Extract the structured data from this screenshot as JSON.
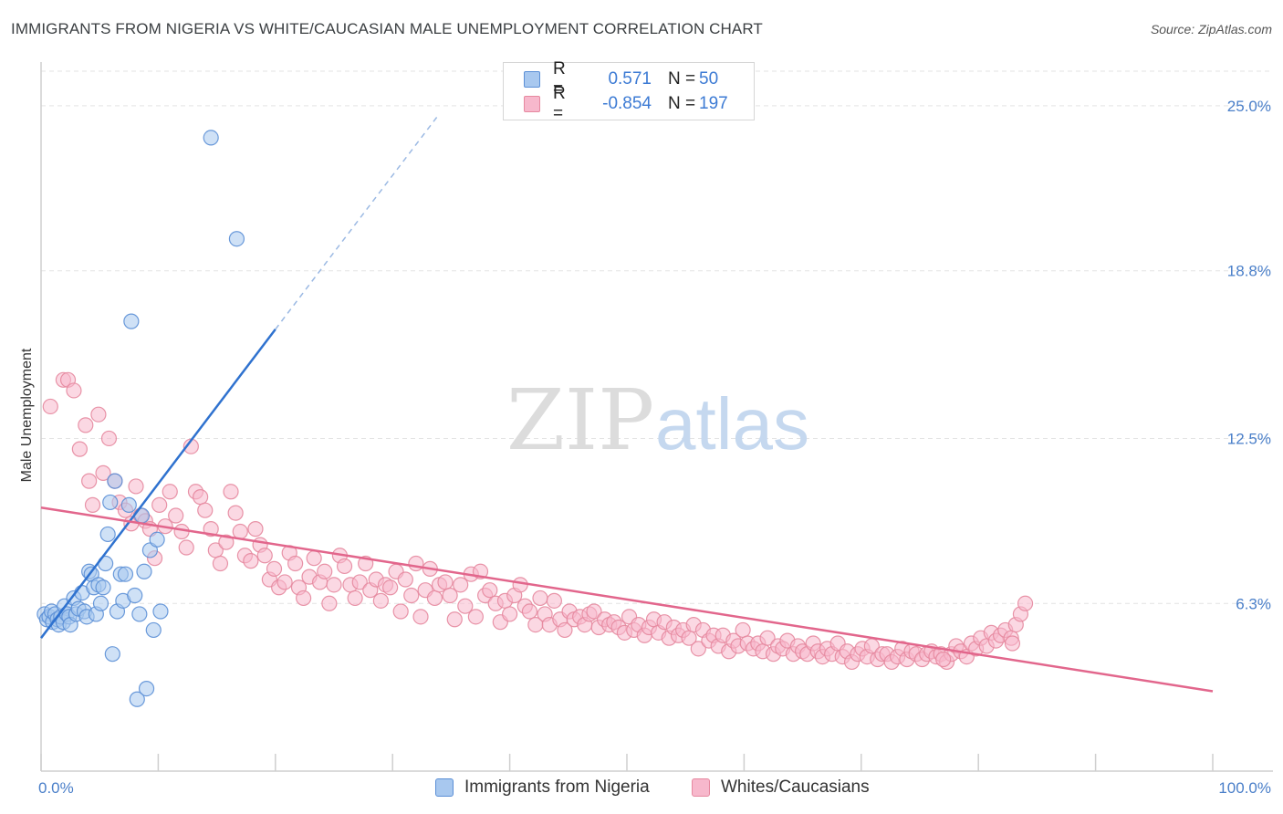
{
  "header": {
    "title": "IMMIGRANTS FROM NIGERIA VS WHITE/CAUCASIAN MALE UNEMPLOYMENT CORRELATION CHART",
    "source": "Source: ZipAtlas.com"
  },
  "watermark": {
    "zip": "ZIP",
    "atlas": "atlas"
  },
  "legend": {
    "rows": [
      {
        "r_label": "R =",
        "r_value": "0.571",
        "n_label": "N =",
        "n_value": "50",
        "color": "#a8c8ef",
        "border": "#5b8fd6"
      },
      {
        "r_label": "R =",
        "r_value": "-0.854",
        "n_label": "N =",
        "n_value": "197",
        "color": "#f7b8cc",
        "border": "#e6889f"
      }
    ]
  },
  "bottom_legend": [
    {
      "label": "Immigrants from Nigeria",
      "color": "#a8c8ef",
      "border": "#5b8fd6"
    },
    {
      "label": "Whites/Caucasians",
      "color": "#f7b8cc",
      "border": "#e6889f"
    }
  ],
  "chart_data": {
    "type": "scatter",
    "title": "IMMIGRANTS FROM NIGERIA VS WHITE/CAUCASIAN MALE UNEMPLOYMENT CORRELATION CHART",
    "xlabel": "",
    "ylabel": "Male Unemployment",
    "xlim": [
      0,
      100
    ],
    "ylim": [
      0,
      26.3
    ],
    "x_tick_labels": [
      "0.0%",
      "100.0%"
    ],
    "y_ticks": [
      6.3,
      12.5,
      18.8,
      25.0
    ],
    "y_tick_labels": [
      "6.3%",
      "12.5%",
      "18.8%",
      "25.0%"
    ],
    "colors": {
      "blue_fill": "#a8c8ef",
      "blue_stroke": "#5b8fd6",
      "blue_line": "#2f72cf",
      "pink_fill": "#f7b8cc",
      "pink_stroke": "#e6889f",
      "pink_line": "#e2668c"
    },
    "series": [
      {
        "name": "Immigrants from Nigeria",
        "r": 0.571,
        "n": 50,
        "trend": {
          "x0": 0,
          "y0": 5.0,
          "x1": 20,
          "y1": 16.6,
          "dash_to_x": 34,
          "dash_to_y": 24.7
        },
        "points": [
          [
            0.3,
            5.9
          ],
          [
            0.5,
            5.7
          ],
          [
            0.7,
            5.8
          ],
          [
            0.9,
            6.0
          ],
          [
            1.0,
            5.6
          ],
          [
            1.2,
            5.9
          ],
          [
            1.4,
            5.7
          ],
          [
            1.5,
            5.5
          ],
          [
            1.7,
            5.8
          ],
          [
            1.9,
            5.6
          ],
          [
            2.0,
            6.2
          ],
          [
            2.2,
            5.9
          ],
          [
            2.4,
            5.8
          ],
          [
            2.5,
            5.5
          ],
          [
            2.8,
            6.5
          ],
          [
            3.0,
            5.9
          ],
          [
            3.2,
            6.1
          ],
          [
            3.5,
            6.7
          ],
          [
            3.7,
            6.0
          ],
          [
            3.9,
            5.8
          ],
          [
            4.1,
            7.5
          ],
          [
            4.3,
            7.4
          ],
          [
            4.5,
            6.9
          ],
          [
            4.7,
            5.9
          ],
          [
            4.9,
            7.0
          ],
          [
            5.1,
            6.3
          ],
          [
            5.3,
            6.9
          ],
          [
            5.5,
            7.8
          ],
          [
            5.7,
            8.9
          ],
          [
            5.9,
            10.1
          ],
          [
            6.1,
            4.4
          ],
          [
            6.3,
            10.9
          ],
          [
            6.5,
            6.0
          ],
          [
            6.8,
            7.4
          ],
          [
            7.0,
            6.4
          ],
          [
            7.2,
            7.4
          ],
          [
            7.5,
            10.0
          ],
          [
            7.7,
            16.9
          ],
          [
            8.0,
            6.6
          ],
          [
            8.2,
            2.7
          ],
          [
            8.4,
            5.9
          ],
          [
            8.6,
            9.6
          ],
          [
            8.8,
            7.5
          ],
          [
            9.0,
            3.1
          ],
          [
            9.3,
            8.3
          ],
          [
            9.6,
            5.3
          ],
          [
            9.9,
            8.7
          ],
          [
            10.2,
            6.0
          ],
          [
            14.5,
            23.8
          ],
          [
            16.7,
            20.0
          ]
        ]
      },
      {
        "name": "Whites/Caucasians",
        "r": -0.854,
        "n": 197,
        "trend": {
          "x0": 0,
          "y0": 9.9,
          "x1": 100,
          "y1": 3.0
        },
        "points": [
          [
            0.8,
            13.7
          ],
          [
            1.9,
            14.7
          ],
          [
            2.3,
            14.7
          ],
          [
            2.8,
            14.3
          ],
          [
            3.3,
            12.1
          ],
          [
            3.8,
            13.0
          ],
          [
            4.1,
            10.9
          ],
          [
            4.4,
            10.0
          ],
          [
            4.9,
            13.4
          ],
          [
            5.3,
            11.2
          ],
          [
            5.8,
            12.5
          ],
          [
            6.3,
            10.9
          ],
          [
            6.7,
            10.1
          ],
          [
            7.2,
            9.8
          ],
          [
            7.7,
            9.3
          ],
          [
            8.1,
            10.7
          ],
          [
            8.5,
            9.6
          ],
          [
            8.9,
            9.4
          ],
          [
            9.3,
            9.1
          ],
          [
            9.7,
            8.0
          ],
          [
            10.1,
            10.0
          ],
          [
            10.6,
            9.2
          ],
          [
            11.0,
            10.5
          ],
          [
            11.5,
            9.6
          ],
          [
            12.0,
            9.0
          ],
          [
            12.4,
            8.4
          ],
          [
            12.8,
            12.2
          ],
          [
            13.2,
            10.5
          ],
          [
            13.6,
            10.3
          ],
          [
            14.0,
            9.8
          ],
          [
            14.5,
            9.1
          ],
          [
            14.9,
            8.3
          ],
          [
            15.3,
            7.8
          ],
          [
            15.8,
            8.6
          ],
          [
            16.2,
            10.5
          ],
          [
            16.6,
            9.7
          ],
          [
            17.0,
            9.0
          ],
          [
            17.4,
            8.1
          ],
          [
            17.9,
            7.9
          ],
          [
            18.3,
            9.1
          ],
          [
            18.7,
            8.5
          ],
          [
            19.1,
            8.1
          ],
          [
            19.5,
            7.2
          ],
          [
            19.9,
            7.6
          ],
          [
            20.3,
            6.9
          ],
          [
            20.8,
            7.1
          ],
          [
            21.2,
            8.2
          ],
          [
            21.7,
            7.8
          ],
          [
            22.0,
            6.9
          ],
          [
            22.4,
            6.5
          ],
          [
            22.9,
            7.3
          ],
          [
            23.3,
            8.0
          ],
          [
            23.8,
            7.1
          ],
          [
            24.2,
            7.5
          ],
          [
            24.6,
            6.3
          ],
          [
            25.0,
            7.0
          ],
          [
            25.5,
            8.1
          ],
          [
            25.9,
            7.7
          ],
          [
            26.4,
            7.0
          ],
          [
            26.8,
            6.5
          ],
          [
            27.2,
            7.1
          ],
          [
            27.7,
            7.8
          ],
          [
            28.1,
            6.8
          ],
          [
            28.6,
            7.2
          ],
          [
            29.0,
            6.4
          ],
          [
            29.4,
            7.0
          ],
          [
            29.8,
            6.9
          ],
          [
            30.3,
            7.5
          ],
          [
            30.7,
            6.0
          ],
          [
            31.1,
            7.2
          ],
          [
            31.6,
            6.6
          ],
          [
            32.0,
            7.8
          ],
          [
            32.4,
            5.8
          ],
          [
            32.8,
            6.8
          ],
          [
            33.2,
            7.6
          ],
          [
            33.6,
            6.5
          ],
          [
            34.0,
            7.0
          ],
          [
            34.5,
            7.1
          ],
          [
            34.9,
            6.6
          ],
          [
            35.3,
            5.7
          ],
          [
            35.8,
            7.0
          ],
          [
            36.2,
            6.2
          ],
          [
            36.7,
            7.4
          ],
          [
            37.1,
            5.8
          ],
          [
            37.5,
            7.5
          ],
          [
            37.9,
            6.6
          ],
          [
            38.3,
            6.8
          ],
          [
            38.8,
            6.3
          ],
          [
            39.2,
            5.6
          ],
          [
            39.6,
            6.4
          ],
          [
            40.0,
            5.9
          ],
          [
            40.4,
            6.6
          ],
          [
            40.9,
            7.0
          ],
          [
            41.3,
            6.2
          ],
          [
            41.7,
            6.0
          ],
          [
            42.2,
            5.5
          ],
          [
            42.6,
            6.5
          ],
          [
            43.0,
            5.9
          ],
          [
            43.4,
            5.5
          ],
          [
            43.8,
            6.4
          ],
          [
            44.3,
            5.7
          ],
          [
            44.7,
            5.3
          ],
          [
            45.1,
            6.0
          ],
          [
            45.5,
            5.7
          ],
          [
            46.0,
            5.8
          ],
          [
            46.4,
            5.5
          ],
          [
            46.8,
            5.9
          ],
          [
            47.2,
            6.0
          ],
          [
            47.6,
            5.4
          ],
          [
            48.1,
            5.7
          ],
          [
            48.5,
            5.5
          ],
          [
            48.9,
            5.6
          ],
          [
            49.3,
            5.4
          ],
          [
            49.8,
            5.2
          ],
          [
            50.2,
            5.8
          ],
          [
            50.6,
            5.3
          ],
          [
            51.0,
            5.5
          ],
          [
            51.5,
            5.1
          ],
          [
            51.9,
            5.4
          ],
          [
            52.3,
            5.7
          ],
          [
            52.7,
            5.2
          ],
          [
            53.2,
            5.6
          ],
          [
            53.6,
            5.0
          ],
          [
            54.0,
            5.4
          ],
          [
            54.4,
            5.1
          ],
          [
            54.8,
            5.3
          ],
          [
            55.3,
            5.0
          ],
          [
            55.7,
            5.5
          ],
          [
            56.1,
            4.6
          ],
          [
            56.5,
            5.3
          ],
          [
            57.0,
            4.9
          ],
          [
            57.4,
            5.1
          ],
          [
            57.8,
            4.7
          ],
          [
            58.2,
            5.1
          ],
          [
            58.7,
            4.5
          ],
          [
            59.1,
            4.9
          ],
          [
            59.5,
            4.7
          ],
          [
            59.9,
            5.3
          ],
          [
            60.3,
            4.8
          ],
          [
            60.8,
            4.6
          ],
          [
            61.2,
            4.8
          ],
          [
            61.6,
            4.5
          ],
          [
            62.0,
            5.0
          ],
          [
            62.5,
            4.4
          ],
          [
            62.9,
            4.7
          ],
          [
            63.3,
            4.6
          ],
          [
            63.7,
            4.9
          ],
          [
            64.2,
            4.4
          ],
          [
            64.6,
            4.7
          ],
          [
            65.0,
            4.5
          ],
          [
            65.4,
            4.4
          ],
          [
            65.9,
            4.8
          ],
          [
            66.3,
            4.5
          ],
          [
            66.7,
            4.3
          ],
          [
            67.1,
            4.6
          ],
          [
            67.5,
            4.4
          ],
          [
            68.0,
            4.8
          ],
          [
            68.4,
            4.3
          ],
          [
            68.8,
            4.5
          ],
          [
            69.2,
            4.1
          ],
          [
            69.7,
            4.4
          ],
          [
            70.1,
            4.6
          ],
          [
            70.5,
            4.3
          ],
          [
            70.9,
            4.7
          ],
          [
            71.4,
            4.2
          ],
          [
            71.8,
            4.4
          ],
          [
            72.2,
            4.4
          ],
          [
            72.6,
            4.1
          ],
          [
            73.1,
            4.3
          ],
          [
            73.5,
            4.6
          ],
          [
            73.9,
            4.2
          ],
          [
            74.3,
            4.5
          ],
          [
            74.7,
            4.4
          ],
          [
            75.2,
            4.2
          ],
          [
            75.6,
            4.4
          ],
          [
            76.0,
            4.5
          ],
          [
            76.4,
            4.3
          ],
          [
            76.8,
            4.4
          ],
          [
            77.3,
            4.1
          ],
          [
            77.7,
            4.4
          ],
          [
            78.1,
            4.7
          ],
          [
            78.5,
            4.5
          ],
          [
            79.0,
            4.3
          ],
          [
            79.4,
            4.8
          ],
          [
            79.8,
            4.6
          ],
          [
            80.2,
            5.0
          ],
          [
            80.7,
            4.7
          ],
          [
            81.1,
            5.2
          ],
          [
            81.5,
            4.9
          ],
          [
            81.9,
            5.1
          ],
          [
            82.3,
            5.3
          ],
          [
            82.8,
            5.0
          ],
          [
            83.2,
            5.5
          ],
          [
            83.6,
            5.9
          ],
          [
            84.0,
            6.3
          ],
          [
            82.9,
            4.8
          ],
          [
            77.0,
            4.2
          ]
        ]
      }
    ]
  }
}
